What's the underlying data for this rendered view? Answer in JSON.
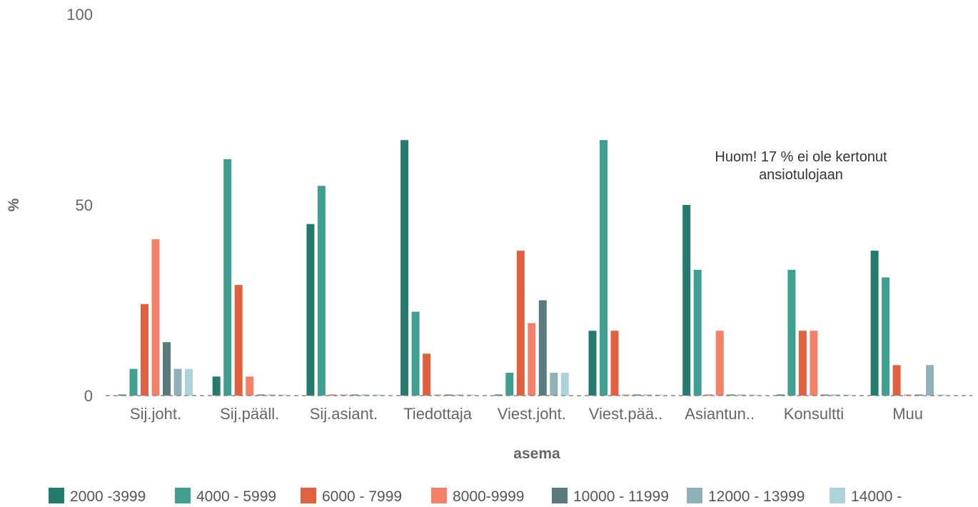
{
  "chart_data": {
    "type": "bar",
    "title": "",
    "xlabel": "asema",
    "ylabel": "%",
    "ylim": [
      0,
      100
    ],
    "yticks": [
      "0",
      "50",
      "100"
    ],
    "grid": false,
    "legend_position": "bottom",
    "categories": [
      "Sij.joht.",
      "Sij.pääll.",
      "Sij.asiant.",
      "Tiedottaja",
      "Viest.joht.",
      "Viest.pää..",
      "Asiantun..",
      "Konsultti",
      "Muu"
    ],
    "series": [
      {
        "name": "2000 -3999",
        "color": "#247a6d",
        "values": [
          0,
          5,
          45,
          67,
          0,
          17,
          50,
          0,
          38
        ]
      },
      {
        "name": "4000 - 5999",
        "color": "#3fa092",
        "values": [
          7,
          62,
          55,
          22,
          6,
          67,
          33,
          33,
          31
        ]
      },
      {
        "name": "6000 - 7999",
        "color": "#e0603f",
        "values": [
          24,
          29,
          0,
          11,
          38,
          17,
          0,
          17,
          8
        ]
      },
      {
        "name": "8000-9999",
        "color": "#f5806a",
        "values": [
          41,
          5,
          0,
          0,
          19,
          0,
          17,
          17,
          0
        ]
      },
      {
        "name": "10000 - 11999",
        "color": "#5a7a7d",
        "values": [
          14,
          0,
          0,
          0,
          25,
          0,
          0,
          0,
          0
        ]
      },
      {
        "name": "12000 - 13999",
        "color": "#8fb1b8",
        "values": [
          7,
          0,
          0,
          0,
          6,
          0,
          0,
          0,
          8
        ]
      },
      {
        "name": "14000 -",
        "color": "#aed3db",
        "values": [
          7,
          0,
          0,
          0,
          6,
          0,
          0,
          0,
          0
        ]
      }
    ],
    "annotations": [
      "Huom! 17 % ei ole kertonut",
      "ansiotulojaan"
    ]
  }
}
